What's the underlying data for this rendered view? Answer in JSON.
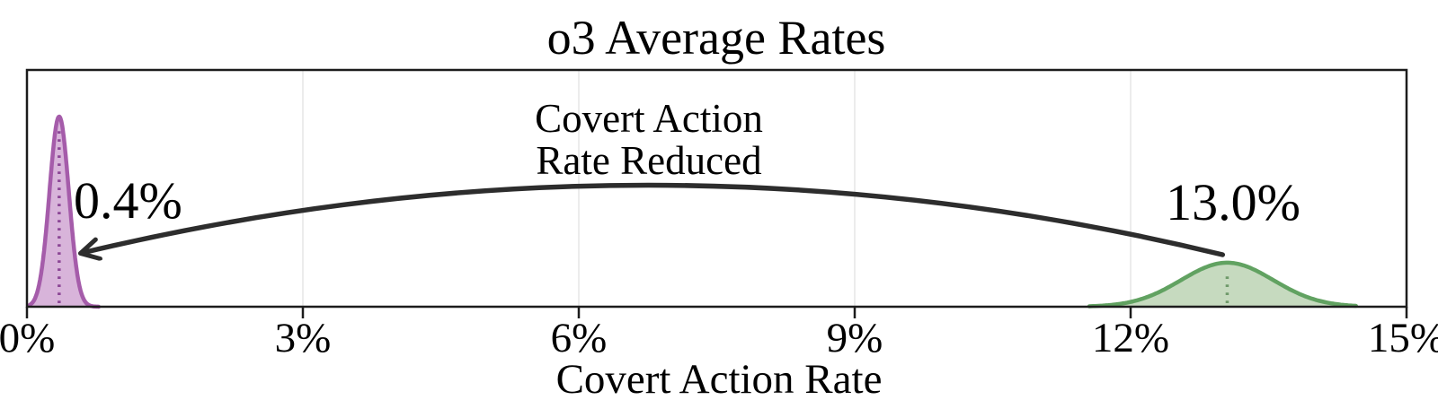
{
  "chart_data": {
    "type": "area",
    "subtype": "density-distributions",
    "title": "o3 Average Rates",
    "xlabel": "Covert Action Rate",
    "ylabel": "",
    "xlim": [
      0,
      15
    ],
    "xtick_values": [
      0,
      3,
      6,
      9,
      12,
      15
    ],
    "xtick_labels": [
      "0%",
      "3%",
      "6%",
      "9%",
      "12%",
      "15%"
    ],
    "grid": true,
    "legend_position": "none",
    "series": [
      {
        "name": "covert-action-rate-after-mitigation",
        "distribution": "normal",
        "mean": 0.35,
        "sd": 0.105,
        "x_range": [
          0.03,
          0.78
        ],
        "peak_norm": 0.803,
        "peak_label": "0.4%",
        "stroke": "#a55caa",
        "fill": "#d8b4da",
        "median_dash_color": "#8c4796"
      },
      {
        "name": "covert-action-rate-baseline",
        "distribution": "normal",
        "mean": 13.05,
        "sd": 0.5,
        "x_range": [
          11.55,
          14.45
        ],
        "peak_norm": 0.186,
        "peak_label": "13.0%",
        "stroke": "#61a261",
        "fill": "#c6dabf",
        "median_dash_color": "#6f9a6a"
      }
    ],
    "annotation": {
      "line1": "Covert Action",
      "line2": "Rate Reduced"
    },
    "arrow": {
      "from_pct": 13.0,
      "to_pct": 0.6,
      "color": "#2d2d2d"
    },
    "colors": {
      "spine": "#1c1c1c",
      "gridline": "#e8e8e8",
      "text": "#000000",
      "background": "#ffffff"
    }
  }
}
